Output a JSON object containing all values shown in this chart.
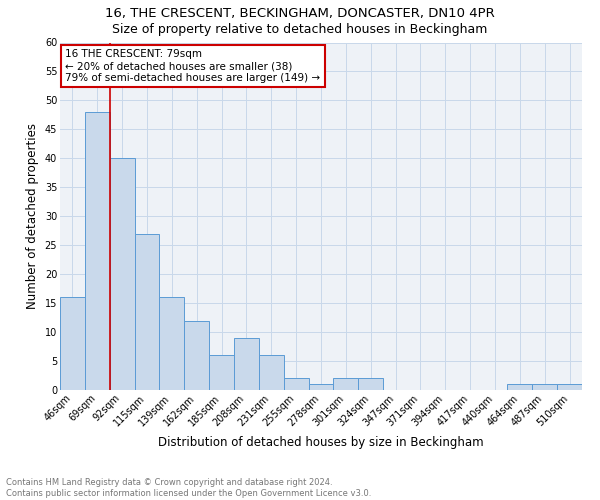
{
  "title1": "16, THE CRESCENT, BECKINGHAM, DONCASTER, DN10 4PR",
  "title2": "Size of property relative to detached houses in Beckingham",
  "xlabel": "Distribution of detached houses by size in Beckingham",
  "ylabel": "Number of detached properties",
  "categories": [
    "46sqm",
    "69sqm",
    "92sqm",
    "115sqm",
    "139sqm",
    "162sqm",
    "185sqm",
    "208sqm",
    "231sqm",
    "255sqm",
    "278sqm",
    "301sqm",
    "324sqm",
    "347sqm",
    "371sqm",
    "394sqm",
    "417sqm",
    "440sqm",
    "464sqm",
    "487sqm",
    "510sqm"
  ],
  "values": [
    16,
    48,
    40,
    27,
    16,
    12,
    6,
    9,
    6,
    2,
    1,
    2,
    2,
    0,
    0,
    0,
    0,
    0,
    1,
    1,
    1
  ],
  "bar_color": "#c9d9eb",
  "bar_edge_color": "#5b9bd5",
  "grid_color": "#c8d8ea",
  "vline_x_idx": 1,
  "vline_color": "#cc0000",
  "annotation_line1": "16 THE CRESCENT: 79sqm",
  "annotation_line2": "← 20% of detached houses are smaller (38)",
  "annotation_line3": "79% of semi-detached houses are larger (149) →",
  "annotation_box_color": "white",
  "annotation_box_edge": "#cc0000",
  "ylim": [
    0,
    60
  ],
  "yticks": [
    0,
    5,
    10,
    15,
    20,
    25,
    30,
    35,
    40,
    45,
    50,
    55,
    60
  ],
  "footer": "Contains HM Land Registry data © Crown copyright and database right 2024.\nContains public sector information licensed under the Open Government Licence v3.0.",
  "bg_color": "#eef2f7",
  "title1_fontsize": 9.5,
  "title2_fontsize": 9,
  "ylabel_fontsize": 8.5,
  "xlabel_fontsize": 8.5,
  "tick_fontsize": 7,
  "annot_fontsize": 7.5,
  "footer_fontsize": 6
}
